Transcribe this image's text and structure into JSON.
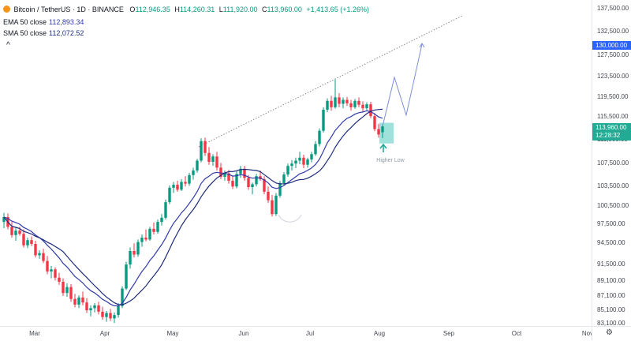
{
  "legend": {
    "symbol": "Bitcoin / TetherUS · 1D · BINANCE",
    "open_label": "O",
    "open": "112,946.35",
    "high_label": "H",
    "high": "114,260.31",
    "low_label": "L",
    "low": "111,920.00",
    "close_label": "C",
    "close": "113,960.00",
    "change": "+1,413.65 (+1.26%)",
    "ema_label": "EMA 50 close",
    "ema_value": "112,893.34",
    "sma_label": "SMA 50 close",
    "sma_value": "112,072.52",
    "collapse_glyph": "^"
  },
  "colors": {
    "up": "#089981",
    "down": "#f23645",
    "ema": "#2f3aa8",
    "sma": "#1e2c7a",
    "target_line": "#7d8fd6",
    "trend_line": "#8a8a8a",
    "target_badge": "#2962ff",
    "last_badge": "#22ab94",
    "zone": "#7fd8d0",
    "annotation": "#26a69a"
  },
  "price_axis": {
    "ticks": [
      "137,500.00",
      "132,500.00",
      "127,500.00",
      "123,500.00",
      "119,500.00",
      "115,500.00",
      "111,500.00",
      "107,500.00",
      "103,500.00",
      "100,500.00",
      "97,500.00",
      "94,500.00",
      "91,500.00",
      "89,100.00",
      "87,100.00",
      "85,100.00",
      "83,100.00"
    ],
    "target_badge": "130,000.00",
    "last_price": "113,960.00",
    "countdown": "12:28:32"
  },
  "time_axis": {
    "ticks": [
      "Mar",
      "Apr",
      "May",
      "Jun",
      "Jul",
      "Aug",
      "Sep",
      "Oct",
      "Nov"
    ],
    "settings_icon": "gear-icon"
  },
  "annotations": {
    "higher_low": "Higher Low",
    "arrow_icon": "arrow-up-icon"
  },
  "chart_data": {
    "type": "candlestick",
    "symbol": "BTCUSDT",
    "interval": "1D",
    "ylim": [
      83100,
      137500
    ],
    "x_labels": [
      "Mar",
      "Apr",
      "May",
      "Jun",
      "Jul",
      "Aug",
      "Sep",
      "Oct",
      "Nov"
    ],
    "candles": [
      [
        0,
        98.0,
        99.5,
        97.0,
        98.8
      ],
      [
        1,
        98.8,
        99.4,
        96.8,
        97.2
      ],
      [
        2,
        97.2,
        98.0,
        95.5,
        95.9
      ],
      [
        3,
        95.9,
        97.1,
        95.0,
        96.6
      ],
      [
        4,
        96.6,
        97.2,
        95.8,
        96.1
      ],
      [
        5,
        96.1,
        96.8,
        94.0,
        94.3
      ],
      [
        6,
        94.3,
        95.5,
        93.9,
        95.1
      ],
      [
        7,
        95.1,
        95.7,
        94.2,
        94.5
      ],
      [
        8,
        94.5,
        95.0,
        92.6,
        92.9
      ],
      [
        9,
        92.9,
        93.6,
        92.4,
        93.2
      ],
      [
        10,
        93.2,
        93.8,
        91.8,
        92.1
      ],
      [
        11,
        92.1,
        92.8,
        90.2,
        90.6
      ],
      [
        12,
        90.6,
        91.4,
        89.6,
        90.9
      ],
      [
        13,
        90.9,
        91.2,
        89.3,
        89.7
      ],
      [
        14,
        89.7,
        90.4,
        88.7,
        89.1
      ],
      [
        15,
        89.1,
        89.6,
        87.2,
        87.6
      ],
      [
        16,
        87.6,
        88.9,
        87.1,
        88.4
      ],
      [
        17,
        88.4,
        88.8,
        86.4,
        86.8
      ],
      [
        18,
        86.8,
        87.5,
        85.6,
        86.0
      ],
      [
        19,
        86.0,
        87.3,
        85.5,
        87.0
      ],
      [
        20,
        87.0,
        87.8,
        85.9,
        86.3
      ],
      [
        21,
        86.3,
        86.9,
        84.8,
        85.2
      ],
      [
        22,
        85.2,
        85.9,
        84.3,
        85.5
      ],
      [
        23,
        85.5,
        86.2,
        84.9,
        85.9
      ],
      [
        24,
        85.9,
        86.4,
        84.6,
        85.0
      ],
      [
        25,
        85.0,
        85.7,
        83.8,
        84.2
      ],
      [
        26,
        84.2,
        85.1,
        83.5,
        84.8
      ],
      [
        27,
        84.8,
        85.4,
        83.6,
        84.0
      ],
      [
        28,
        84.0,
        84.9,
        83.3,
        84.5
      ],
      [
        29,
        84.5,
        86.2,
        84.1,
        85.8
      ],
      [
        30,
        85.8,
        88.5,
        85.5,
        88.2
      ],
      [
        31,
        88.2,
        92.0,
        88.0,
        91.6
      ],
      [
        32,
        91.6,
        94.0,
        91.0,
        93.5
      ],
      [
        33,
        93.5,
        94.6,
        92.6,
        93.0
      ],
      [
        34,
        93.0,
        95.2,
        92.7,
        94.8
      ],
      [
        35,
        94.8,
        96.0,
        94.1,
        95.5
      ],
      [
        36,
        95.5,
        96.8,
        94.9,
        95.2
      ],
      [
        37,
        95.2,
        97.2,
        95.0,
        96.9
      ],
      [
        38,
        96.9,
        97.9,
        96.0,
        96.4
      ],
      [
        39,
        96.4,
        98.4,
        96.1,
        98.0
      ],
      [
        40,
        98.0,
        99.3,
        97.4,
        98.7
      ],
      [
        41,
        98.7,
        101.6,
        98.4,
        101.2
      ],
      [
        42,
        101.2,
        103.8,
        100.9,
        103.4
      ],
      [
        43,
        103.4,
        104.4,
        102.6,
        103.9
      ],
      [
        44,
        103.9,
        104.6,
        102.8,
        103.1
      ],
      [
        45,
        103.1,
        104.9,
        102.9,
        104.4
      ],
      [
        46,
        104.4,
        105.4,
        103.6,
        104.1
      ],
      [
        47,
        104.1,
        106.0,
        103.7,
        105.6
      ],
      [
        48,
        105.6,
        106.9,
        104.8,
        106.4
      ],
      [
        49,
        106.4,
        108.4,
        106.0,
        108.1
      ],
      [
        50,
        108.1,
        111.9,
        107.8,
        111.4
      ],
      [
        51,
        111.4,
        112.0,
        108.9,
        109.4
      ],
      [
        52,
        109.4,
        110.4,
        107.4,
        107.9
      ],
      [
        53,
        107.9,
        109.2,
        107.2,
        108.8
      ],
      [
        54,
        108.8,
        109.6,
        106.4,
        106.9
      ],
      [
        55,
        106.9,
        107.7,
        104.9,
        105.3
      ],
      [
        56,
        105.3,
        106.4,
        104.6,
        105.9
      ],
      [
        57,
        105.9,
        106.5,
        104.1,
        104.6
      ],
      [
        58,
        104.6,
        105.4,
        103.2,
        103.6
      ],
      [
        59,
        103.6,
        106.2,
        103.3,
        105.8
      ],
      [
        60,
        105.8,
        107.2,
        105.1,
        106.7
      ],
      [
        61,
        106.7,
        107.2,
        104.6,
        105.1
      ],
      [
        62,
        105.1,
        105.6,
        103.1,
        103.5
      ],
      [
        63,
        103.5,
        104.3,
        102.4,
        104.0
      ],
      [
        64,
        104.0,
        105.8,
        103.6,
        105.4
      ],
      [
        65,
        105.4,
        106.4,
        104.6,
        104.9
      ],
      [
        66,
        104.9,
        105.4,
        102.4,
        102.8
      ],
      [
        67,
        102.8,
        103.6,
        101.1,
        101.5
      ],
      [
        68,
        101.5,
        102.3,
        98.9,
        99.3
      ],
      [
        69,
        99.3,
        102.6,
        99.0,
        102.2
      ],
      [
        70,
        102.2,
        104.6,
        101.9,
        104.2
      ],
      [
        71,
        104.2,
        106.1,
        103.9,
        105.7
      ],
      [
        72,
        105.7,
        107.6,
        105.3,
        107.2
      ],
      [
        73,
        107.2,
        108.2,
        106.4,
        107.6
      ],
      [
        74,
        107.6,
        108.6,
        106.8,
        108.1
      ],
      [
        75,
        108.1,
        109.6,
        107.5,
        108.6
      ],
      [
        76,
        108.6,
        109.1,
        106.8,
        107.4
      ],
      [
        77,
        107.4,
        108.6,
        106.9,
        108.3
      ],
      [
        78,
        108.3,
        109.6,
        107.8,
        109.2
      ],
      [
        79,
        109.2,
        111.4,
        108.9,
        110.9
      ],
      [
        80,
        110.9,
        113.6,
        110.5,
        113.2
      ],
      [
        81,
        113.2,
        117.6,
        112.9,
        117.1
      ],
      [
        82,
        117.1,
        119.4,
        116.6,
        118.9
      ],
      [
        83,
        118.9,
        119.9,
        116.9,
        117.6
      ],
      [
        84,
        117.6,
        123.1,
        117.3,
        119.6
      ],
      [
        85,
        119.6,
        120.4,
        117.6,
        118.3
      ],
      [
        86,
        118.3,
        119.6,
        117.4,
        119.1
      ],
      [
        87,
        119.1,
        119.7,
        117.9,
        118.4
      ],
      [
        88,
        118.4,
        119.1,
        116.9,
        117.6
      ],
      [
        89,
        117.6,
        119.3,
        117.3,
        118.9
      ],
      [
        90,
        118.9,
        119.6,
        117.6,
        118.1
      ],
      [
        91,
        118.1,
        118.8,
        116.6,
        117.4
      ],
      [
        92,
        117.4,
        118.6,
        117.0,
        118.2
      ],
      [
        93,
        118.2,
        118.7,
        115.4,
        115.8
      ],
      [
        94,
        115.8,
        116.4,
        113.1,
        113.5
      ],
      [
        95,
        113.5,
        114.4,
        112.0,
        112.55
      ],
      [
        96,
        112.95,
        114.26,
        111.92,
        113.96
      ]
    ],
    "indicators": {
      "ema_50_last": 112893.34,
      "sma_50_last": 112072.52
    },
    "projection_target": 130000
  }
}
